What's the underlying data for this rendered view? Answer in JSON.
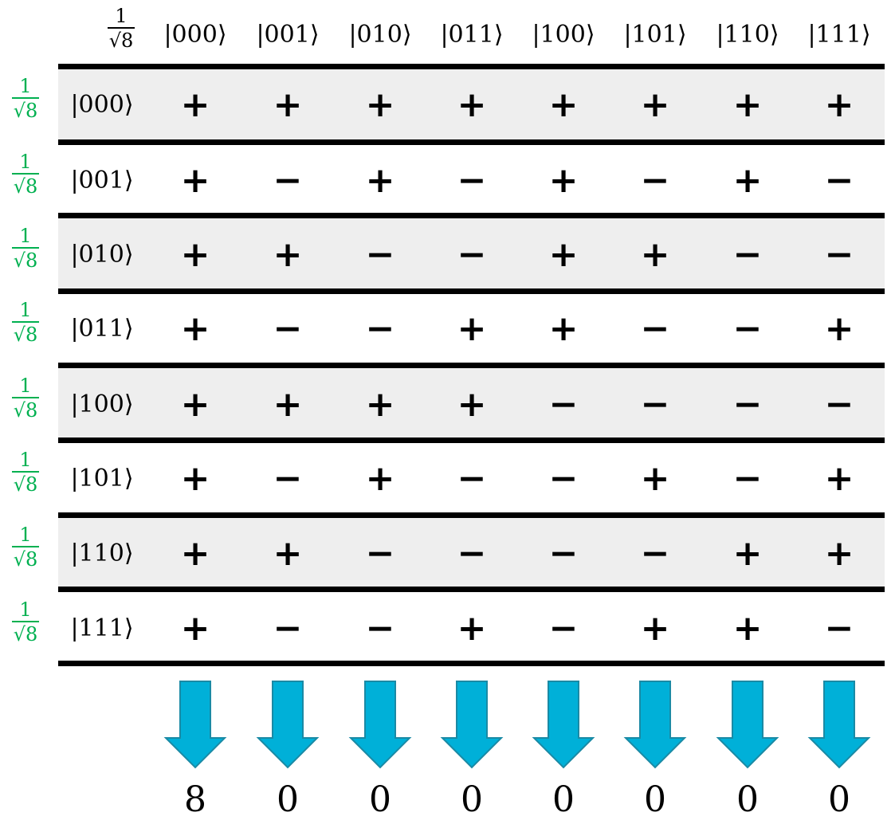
{
  "colors": {
    "prefactor_row": "#00b050",
    "prefactor_col": "#000000",
    "band": "#eeeeee",
    "arrow_fill": "#00b0d8",
    "arrow_stroke": "#1a8aa5"
  },
  "column_prefactor": {
    "numerator": "1",
    "denominator": "√8"
  },
  "column_labels": [
    "|000⟩",
    "|001⟩",
    "|010⟩",
    "|011⟩",
    "|100⟩",
    "|101⟩",
    "|110⟩",
    "|111⟩"
  ],
  "rows": [
    {
      "prefactor": {
        "numerator": "1",
        "denominator": "√8"
      },
      "label": "|000⟩",
      "signs": [
        "+",
        "+",
        "+",
        "+",
        "+",
        "+",
        "+",
        "+"
      ]
    },
    {
      "prefactor": {
        "numerator": "1",
        "denominator": "√8"
      },
      "label": "|001⟩",
      "signs": [
        "+",
        "−",
        "+",
        "−",
        "+",
        "−",
        "+",
        "−"
      ]
    },
    {
      "prefactor": {
        "numerator": "1",
        "denominator": "√8"
      },
      "label": "|010⟩",
      "signs": [
        "+",
        "+",
        "−",
        "−",
        "+",
        "+",
        "−",
        "−"
      ]
    },
    {
      "prefactor": {
        "numerator": "1",
        "denominator": "√8"
      },
      "label": "|011⟩",
      "signs": [
        "+",
        "−",
        "−",
        "+",
        "+",
        "−",
        "−",
        "+"
      ]
    },
    {
      "prefactor": {
        "numerator": "1",
        "denominator": "√8"
      },
      "label": "|100⟩",
      "signs": [
        "+",
        "+",
        "+",
        "+",
        "−",
        "−",
        "−",
        "−"
      ]
    },
    {
      "prefactor": {
        "numerator": "1",
        "denominator": "√8"
      },
      "label": "|101⟩",
      "signs": [
        "+",
        "−",
        "+",
        "−",
        "−",
        "+",
        "−",
        "+"
      ]
    },
    {
      "prefactor": {
        "numerator": "1",
        "denominator": "√8"
      },
      "label": "|110⟩",
      "signs": [
        "+",
        "+",
        "−",
        "−",
        "−",
        "−",
        "+",
        "+"
      ]
    },
    {
      "prefactor": {
        "numerator": "1",
        "denominator": "√8"
      },
      "label": "|111⟩",
      "signs": [
        "+",
        "−",
        "−",
        "+",
        "−",
        "+",
        "+",
        "−"
      ]
    }
  ],
  "results": [
    "8",
    "0",
    "0",
    "0",
    "0",
    "0",
    "0",
    "0"
  ]
}
